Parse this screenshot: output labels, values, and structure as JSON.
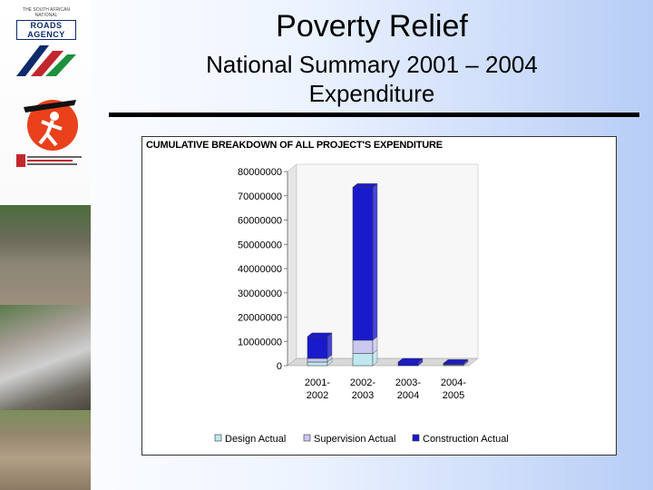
{
  "slide": {
    "title": "Poverty Relief",
    "subtitle_line1": "National Summary 2001 – 2004",
    "subtitle_line2": "Expenditure"
  },
  "sidebar": {
    "logo1_small": "THE SOUTH AFRICAN NATIONAL",
    "logo1_name": "ROADS AGENCY"
  },
  "chart_data": {
    "type": "bar",
    "stacked": true,
    "title": "CUMULATIVE BREAKDOWN OF ALL PROJECT'S EXPENDITURE",
    "categories": [
      "2001-2002",
      "2002-2003",
      "2003-2004",
      "2004-2005"
    ],
    "category_lines": [
      [
        "2001-",
        "2002"
      ],
      [
        "2002-",
        "2003"
      ],
      [
        "2003-",
        "2004"
      ],
      [
        "2004-",
        "2005"
      ]
    ],
    "series": [
      {
        "name": "Design Actual",
        "color": "#bfe8f0",
        "values": [
          1500000,
          5000000,
          0,
          200000
        ]
      },
      {
        "name": "Supervision Actual",
        "color": "#c8c8f0",
        "values": [
          1500000,
          5500000,
          0,
          300000
        ]
      },
      {
        "name": "Construction Actual",
        "color": "#1a1acd",
        "values": [
          9000000,
          63000000,
          1500000,
          500000
        ]
      }
    ],
    "ylim": [
      0,
      80000000
    ],
    "yticks": [
      "0",
      "10000000",
      "20000000",
      "30000000",
      "40000000",
      "50000000",
      "60000000",
      "70000000",
      "80000000"
    ],
    "legend": "bottom",
    "grid": false
  }
}
